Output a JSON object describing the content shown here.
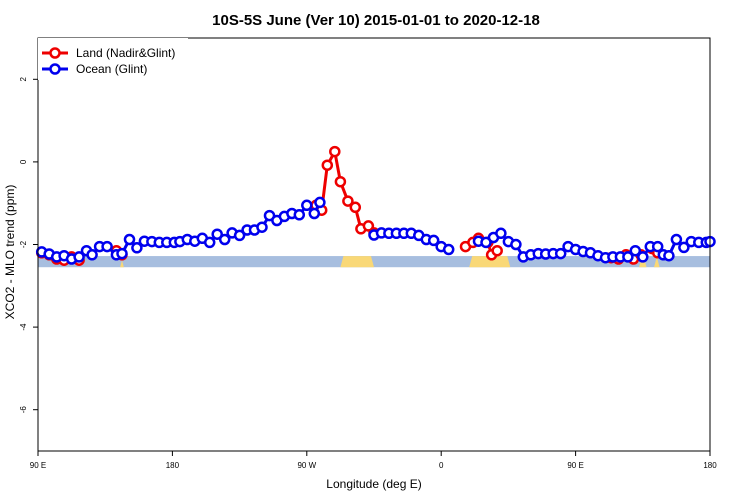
{
  "chart_data": {
    "type": "line",
    "title": "10S-5S June (Ver 10)   2015-01-01 to 2020-12-18",
    "xlabel": "Longitude (deg E)",
    "ylabel": "XCO2 - MLO trend (ppm)",
    "xlim": [
      90,
      450
    ],
    "ylim": [
      -7,
      3
    ],
    "x_ticks": [
      {
        "value": 90,
        "label": "90 E"
      },
      {
        "value": 162,
        "label": "180"
      },
      {
        "value": 234,
        "label": "90 W"
      },
      {
        "value": 306,
        "label": "0"
      },
      {
        "value": 378,
        "label": "90 E"
      },
      {
        "value": 450,
        "label": "180"
      }
    ],
    "y_ticks": [
      {
        "value": 2,
        "label": "2"
      },
      {
        "value": 0,
        "label": "0"
      },
      {
        "value": -2,
        "label": "-2"
      },
      {
        "value": -4,
        "label": "-4"
      },
      {
        "value": -6,
        "label": "-6"
      }
    ],
    "legend": {
      "position": "top-left"
    },
    "series": [
      {
        "name": "Land (Nadir&Glint)",
        "color": "#ee0000",
        "segments": [
          [
            [
              92,
              -2.2
            ],
            [
              96,
              -2.25
            ],
            [
              100,
              -2.35
            ],
            [
              104,
              -2.38
            ],
            [
              108,
              -2.3
            ],
            [
              112,
              -2.38
            ]
          ],
          [
            [
              132,
              -2.15
            ],
            [
              135,
              -2.25
            ]
          ],
          [
            [
              239,
              -1.05
            ],
            [
              242,
              -1.17
            ],
            [
              245,
              -0.08
            ],
            [
              249,
              0.25
            ],
            [
              252,
              -0.48
            ],
            [
              256,
              -0.95
            ],
            [
              260,
              -1.1
            ],
            [
              263,
              -1.62
            ],
            [
              267,
              -1.55
            ],
            [
              270,
              -1.72
            ]
          ],
          [
            [
              319,
              -2.05
            ],
            [
              323,
              -1.95
            ],
            [
              326,
              -1.85
            ],
            [
              331,
              -1.95
            ],
            [
              333,
              -2.25
            ],
            [
              336,
              -2.15
            ]
          ],
          [
            [
              397,
              -2.32
            ],
            [
              401,
              -2.35
            ],
            [
              405,
              -2.25
            ],
            [
              409,
              -2.35
            ],
            [
              413,
              -2.25
            ]
          ],
          [
            [
              419,
              -2.1
            ],
            [
              422,
              -2.2
            ]
          ]
        ]
      },
      {
        "name": "Ocean (Glint)",
        "color": "#0000ee",
        "segments": [
          [
            [
              92,
              -2.18
            ],
            [
              96,
              -2.23
            ],
            [
              100,
              -2.3
            ],
            [
              104,
              -2.27
            ],
            [
              108,
              -2.35
            ],
            [
              112,
              -2.3
            ],
            [
              116,
              -2.15
            ],
            [
              119,
              -2.25
            ],
            [
              123,
              -2.05
            ],
            [
              127,
              -2.05
            ],
            [
              132,
              -2.25
            ],
            [
              135,
              -2.22
            ],
            [
              139,
              -1.88
            ],
            [
              143,
              -2.08
            ],
            [
              147,
              -1.92
            ],
            [
              151,
              -1.93
            ],
            [
              155,
              -1.95
            ],
            [
              159,
              -1.95
            ],
            [
              163,
              -1.95
            ],
            [
              166,
              -1.93
            ],
            [
              170,
              -1.88
            ],
            [
              174,
              -1.92
            ],
            [
              178,
              -1.85
            ],
            [
              182,
              -1.95
            ],
            [
              186,
              -1.75
            ],
            [
              190,
              -1.88
            ],
            [
              194,
              -1.72
            ],
            [
              198,
              -1.78
            ],
            [
              202,
              -1.65
            ],
            [
              206,
              -1.65
            ],
            [
              210,
              -1.58
            ],
            [
              214,
              -1.3
            ],
            [
              218,
              -1.42
            ],
            [
              222,
              -1.32
            ],
            [
              226,
              -1.25
            ],
            [
              230,
              -1.28
            ],
            [
              234,
              -1.05
            ],
            [
              238,
              -1.25
            ],
            [
              241,
              -0.98
            ]
          ],
          [
            [
              270,
              -1.77
            ],
            [
              274,
              -1.72
            ],
            [
              278,
              -1.73
            ],
            [
              282,
              -1.73
            ],
            [
              286,
              -1.73
            ],
            [
              290,
              -1.73
            ],
            [
              294,
              -1.78
            ],
            [
              298,
              -1.88
            ],
            [
              302,
              -1.9
            ],
            [
              306,
              -2.05
            ],
            [
              310,
              -2.12
            ]
          ],
          [
            [
              326,
              -1.92
            ],
            [
              330,
              -1.95
            ],
            [
              334,
              -1.83
            ],
            [
              338,
              -1.73
            ],
            [
              342,
              -1.93
            ],
            [
              346,
              -2.0
            ],
            [
              350,
              -2.3
            ],
            [
              354,
              -2.25
            ],
            [
              358,
              -2.22
            ],
            [
              362,
              -2.23
            ],
            [
              366,
              -2.22
            ],
            [
              370,
              -2.22
            ],
            [
              374,
              -2.05
            ],
            [
              378,
              -2.12
            ],
            [
              382,
              -2.17
            ],
            [
              386,
              -2.2
            ],
            [
              390,
              -2.27
            ],
            [
              394,
              -2.32
            ],
            [
              398,
              -2.3
            ],
            [
              402,
              -2.3
            ],
            [
              406,
              -2.3
            ],
            [
              410,
              -2.15
            ],
            [
              414,
              -2.3
            ],
            [
              418,
              -2.05
            ],
            [
              422,
              -2.05
            ],
            [
              425,
              -2.25
            ],
            [
              428,
              -2.27
            ],
            [
              432,
              -1.88
            ],
            [
              436,
              -2.07
            ],
            [
              440,
              -1.93
            ],
            [
              444,
              -1.95
            ],
            [
              448,
              -1.95
            ],
            [
              450,
              -1.93
            ]
          ]
        ]
      }
    ],
    "surface_bar": {
      "y_range": [
        -2.55,
        -2.28
      ],
      "ocean_color": "#a7bedf",
      "land_color": "#f9d877",
      "land_ranges": [
        [
          134,
          136
        ],
        [
          252,
          270
        ],
        [
          321,
          343
        ],
        [
          412,
          416
        ],
        [
          420,
          423
        ]
      ]
    }
  }
}
